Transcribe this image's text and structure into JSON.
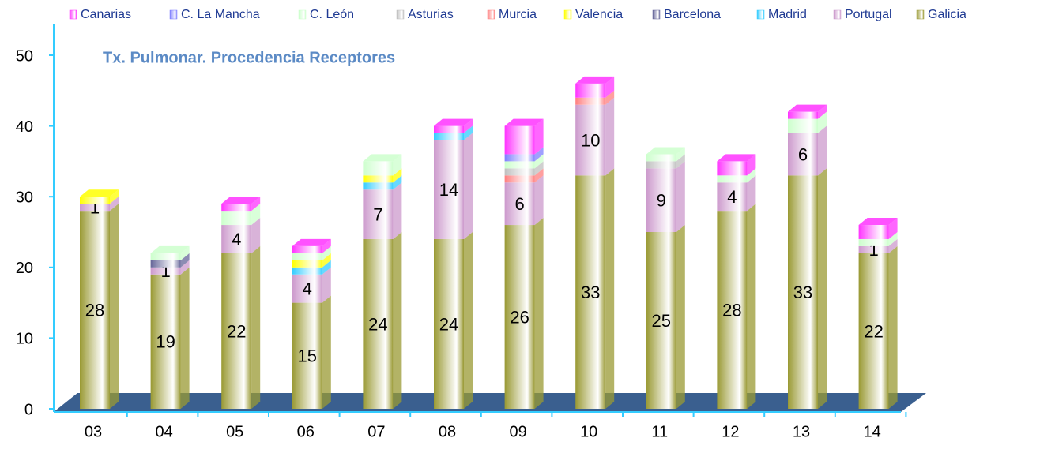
{
  "chart_data": {
    "type": "bar",
    "stacked": true,
    "title": "Tx. Pulmonar. Procedencia Receptores",
    "categories": [
      "03",
      "04",
      "05",
      "06",
      "07",
      "08",
      "09",
      "10",
      "11",
      "12",
      "13",
      "14"
    ],
    "series": [
      {
        "name": "Canarias",
        "color": "#ff33ff",
        "values": [
          0,
          0,
          1,
          1,
          0,
          1,
          4,
          2,
          0,
          2,
          1,
          2
        ]
      },
      {
        "name": "C. La Mancha",
        "color": "#7f7fff",
        "values": [
          0,
          0,
          0,
          0,
          0,
          0,
          1,
          0,
          0,
          0,
          0,
          0
        ]
      },
      {
        "name": "C. León",
        "color": "#ccffcc",
        "values": [
          0,
          1,
          2,
          1,
          2,
          0,
          1,
          0,
          1,
          1,
          2,
          1
        ]
      },
      {
        "name": "Asturias",
        "color": "#c0c0c0",
        "values": [
          0,
          0,
          0,
          0,
          0,
          0,
          1,
          0,
          1,
          0,
          0,
          0
        ]
      },
      {
        "name": "Murcia",
        "color": "#ff7f7f",
        "values": [
          0,
          0,
          0,
          0,
          0,
          0,
          1,
          1,
          0,
          0,
          0,
          0
        ]
      },
      {
        "name": "Valencia",
        "color": "#ffff00",
        "values": [
          1,
          0,
          0,
          1,
          1,
          0,
          0,
          0,
          0,
          0,
          0,
          0
        ]
      },
      {
        "name": "Barcelona",
        "color": "#666699",
        "values": [
          0,
          1,
          0,
          0,
          0,
          0,
          0,
          0,
          0,
          0,
          0,
          0
        ]
      },
      {
        "name": "Madrid",
        "color": "#33ccff",
        "values": [
          0,
          0,
          0,
          1,
          1,
          1,
          0,
          0,
          0,
          0,
          0,
          0
        ]
      },
      {
        "name": "Portugal",
        "color": "#cc99cc",
        "values": [
          1,
          1,
          4,
          4,
          7,
          14,
          6,
          10,
          9,
          4,
          6,
          1
        ],
        "data_labels": true
      },
      {
        "name": "Galicia",
        "color": "#999933",
        "values": [
          28,
          19,
          22,
          15,
          24,
          24,
          26,
          33,
          25,
          28,
          33,
          22
        ],
        "data_labels": true
      }
    ],
    "ylim": [
      0,
      55
    ],
    "yticks": [
      0,
      10,
      20,
      30,
      40,
      50
    ],
    "legend": "top"
  }
}
